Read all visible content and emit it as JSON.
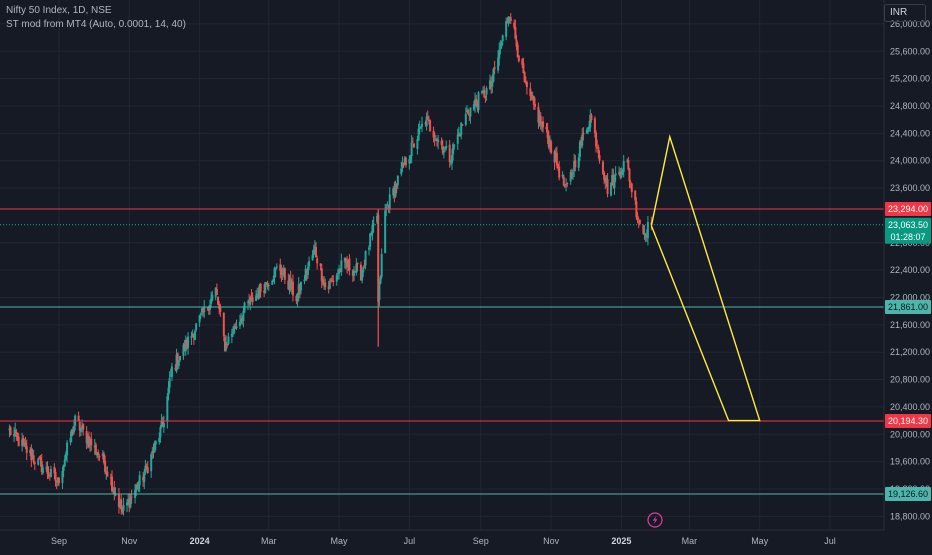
{
  "legend": {
    "symbol_line": "Nifty 50 Index, 1D, NSE",
    "indicator_line": "ST mod from MT4 (Auto, 0.0001, 14, 40)"
  },
  "currency": "INR",
  "current_time_label": "01:28:07",
  "colors": {
    "up": "#26a69a",
    "down": "#ef5350",
    "background": "#161a25",
    "red_level": "#f23645",
    "green_level": "#4db6ac",
    "projection": "#ffeb3b",
    "grid": "#222632"
  },
  "icons": [
    "lightning-icon"
  ],
  "chart_data": {
    "type": "candlestick",
    "title": "",
    "y_axis": {
      "ticks": [
        18800,
        19200,
        19600,
        20000,
        20400,
        20800,
        21200,
        21600,
        22000,
        22400,
        22800,
        23600,
        24000,
        24400,
        24800,
        25200,
        25600,
        26000
      ],
      "tick_labels": [
        "18,800.00",
        "19,200.00",
        "19,600.00",
        "20,000.00",
        "20,400.00",
        "20,800.00",
        "21,200.00",
        "21,600.00",
        "22,000.00",
        "22,400.00",
        "22,800.00",
        "23,600.00",
        "24,000.00",
        "24,400.00",
        "24,800.00",
        "25,200.00",
        "25,600.00",
        "26,000.00"
      ],
      "range": [
        18600,
        26350
      ]
    },
    "x_axis": {
      "labels": [
        {
          "text": "Sep",
          "date": "2023-09-01",
          "bold": false
        },
        {
          "text": "Nov",
          "date": "2023-11-01",
          "bold": false
        },
        {
          "text": "2024",
          "date": "2024-01-01",
          "bold": true
        },
        {
          "text": "Mar",
          "date": "2024-03-01",
          "bold": false
        },
        {
          "text": "May",
          "date": "2024-05-01",
          "bold": false
        },
        {
          "text": "Jul",
          "date": "2024-07-01",
          "bold": false
        },
        {
          "text": "Sep",
          "date": "2024-09-01",
          "bold": false
        },
        {
          "text": "Nov",
          "date": "2024-11-01",
          "bold": false
        },
        {
          "text": "2025",
          "date": "2025-01-01",
          "bold": true
        },
        {
          "text": "Mar",
          "date": "2025-03-01",
          "bold": false
        },
        {
          "text": "May",
          "date": "2025-05-01",
          "bold": false
        },
        {
          "text": "Jul",
          "date": "2025-07-01",
          "bold": false
        }
      ]
    },
    "price_path": [
      {
        "date": "2023-07-20",
        "close": 20050
      },
      {
        "date": "2023-08-10",
        "close": 19650
      },
      {
        "date": "2023-08-31",
        "close": 19300
      },
      {
        "date": "2023-09-15",
        "close": 20190
      },
      {
        "date": "2023-10-10",
        "close": 19600
      },
      {
        "date": "2023-10-26",
        "close": 18860
      },
      {
        "date": "2023-11-15",
        "close": 19450
      },
      {
        "date": "2023-11-30",
        "close": 20130
      },
      {
        "date": "2023-12-08",
        "close": 20950
      },
      {
        "date": "2023-12-20",
        "close": 21300
      },
      {
        "date": "2024-01-15",
        "close": 22100
      },
      {
        "date": "2024-01-23",
        "close": 21300
      },
      {
        "date": "2024-02-10",
        "close": 21850
      },
      {
        "date": "2024-03-10",
        "close": 22450
      },
      {
        "date": "2024-03-25",
        "close": 22000
      },
      {
        "date": "2024-04-10",
        "close": 22700
      },
      {
        "date": "2024-04-20",
        "close": 22100
      },
      {
        "date": "2024-05-05",
        "close": 22500
      },
      {
        "date": "2024-05-20",
        "close": 22350
      },
      {
        "date": "2024-06-03",
        "close": 23200
      },
      {
        "date": "2024-06-04",
        "close": 21900
      },
      {
        "date": "2024-06-10",
        "close": 23250
      },
      {
        "date": "2024-06-28",
        "close": 24000
      },
      {
        "date": "2024-07-15",
        "close": 24600
      },
      {
        "date": "2024-08-05",
        "close": 24050
      },
      {
        "date": "2024-08-20",
        "close": 24700
      },
      {
        "date": "2024-09-10",
        "close": 25100
      },
      {
        "date": "2024-09-26",
        "close": 26200
      },
      {
        "date": "2024-10-10",
        "close": 25050
      },
      {
        "date": "2024-10-30",
        "close": 24300
      },
      {
        "date": "2024-11-14",
        "close": 23550
      },
      {
        "date": "2024-11-22",
        "close": 24000
      },
      {
        "date": "2024-12-05",
        "close": 24650
      },
      {
        "date": "2024-12-20",
        "close": 23600
      },
      {
        "date": "2025-01-05",
        "close": 24000
      },
      {
        "date": "2025-01-15",
        "close": 23200
      },
      {
        "date": "2025-01-20",
        "close": 22950
      },
      {
        "date": "2025-01-27",
        "close": 23063.5
      }
    ],
    "current_price": 23063.5,
    "current_price_label": "23,063.50",
    "horizontal_levels": [
      {
        "value": 23294.0,
        "label": "23,294.00",
        "color": "red"
      },
      {
        "value": 21861.0,
        "label": "21,861.00",
        "color": "green"
      },
      {
        "value": 20194.3,
        "label": "20,194.30",
        "color": "red"
      },
      {
        "value": 19126.6,
        "label": "19,126.60",
        "color": "green"
      }
    ],
    "projection_path": [
      {
        "date": "2025-01-27",
        "value": 23050
      },
      {
        "date": "2025-02-12",
        "value": 24350
      },
      {
        "date": "2025-05-01",
        "value": 20200
      },
      {
        "date": "2025-04-04",
        "value": 20200
      },
      {
        "date": "2025-01-27",
        "value": 23050
      }
    ]
  }
}
